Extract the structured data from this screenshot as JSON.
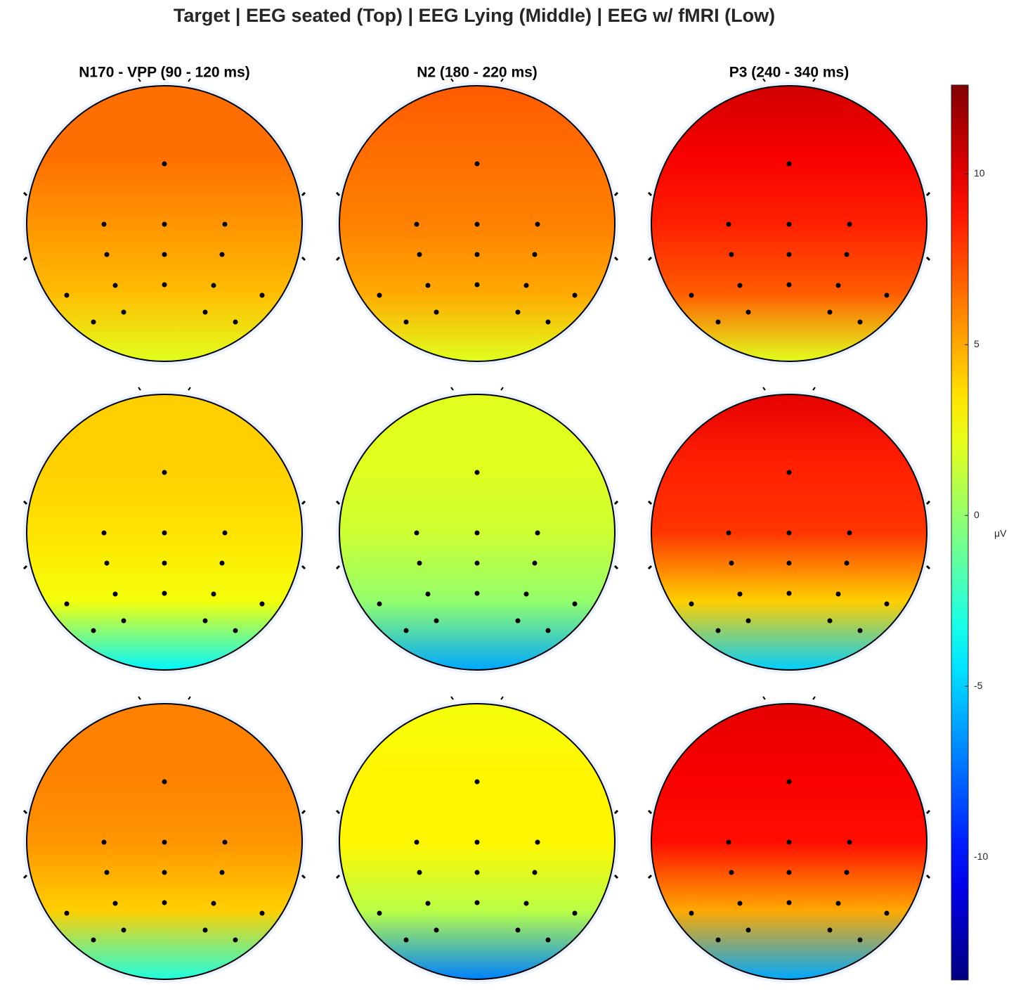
{
  "chart_data": {
    "type": "topoplot",
    "title": "Target | EEG seated (Top) | EEG Lying (Middle) | EEG w/ fMRI (Low)",
    "columns": [
      "N170 - VPP (90 - 120 ms)",
      "N2 (180 - 220 ms)",
      "P3 (240 - 340 ms)"
    ],
    "colorbar": {
      "label": "μV",
      "ylim": [
        -13.6,
        12.6
      ],
      "yticks": [
        -10,
        -5,
        0,
        5,
        10
      ]
    },
    "series": [
      {
        "values": [
          6.5,
          6.5,
          5.5,
          4.5,
          2
        ]
      },
      {
        "values": [
          7,
          6.5,
          6,
          5,
          2
        ]
      },
      {
        "values": [
          10.5,
          9.5,
          8.5,
          7,
          2
        ]
      },
      {
        "values": [
          4,
          4,
          3.5,
          2.5,
          -4
        ]
      },
      {
        "values": [
          2,
          2,
          1.5,
          0,
          -6
        ]
      },
      {
        "values": [
          10,
          8.5,
          8,
          4,
          -5
        ]
      },
      {
        "values": [
          6,
          6,
          5.5,
          4,
          -3
        ]
      },
      {
        "values": [
          2.5,
          3,
          3,
          1,
          -7
        ]
      },
      {
        "values": [
          10,
          9.5,
          9,
          5,
          -6
        ]
      }
    ]
  }
}
